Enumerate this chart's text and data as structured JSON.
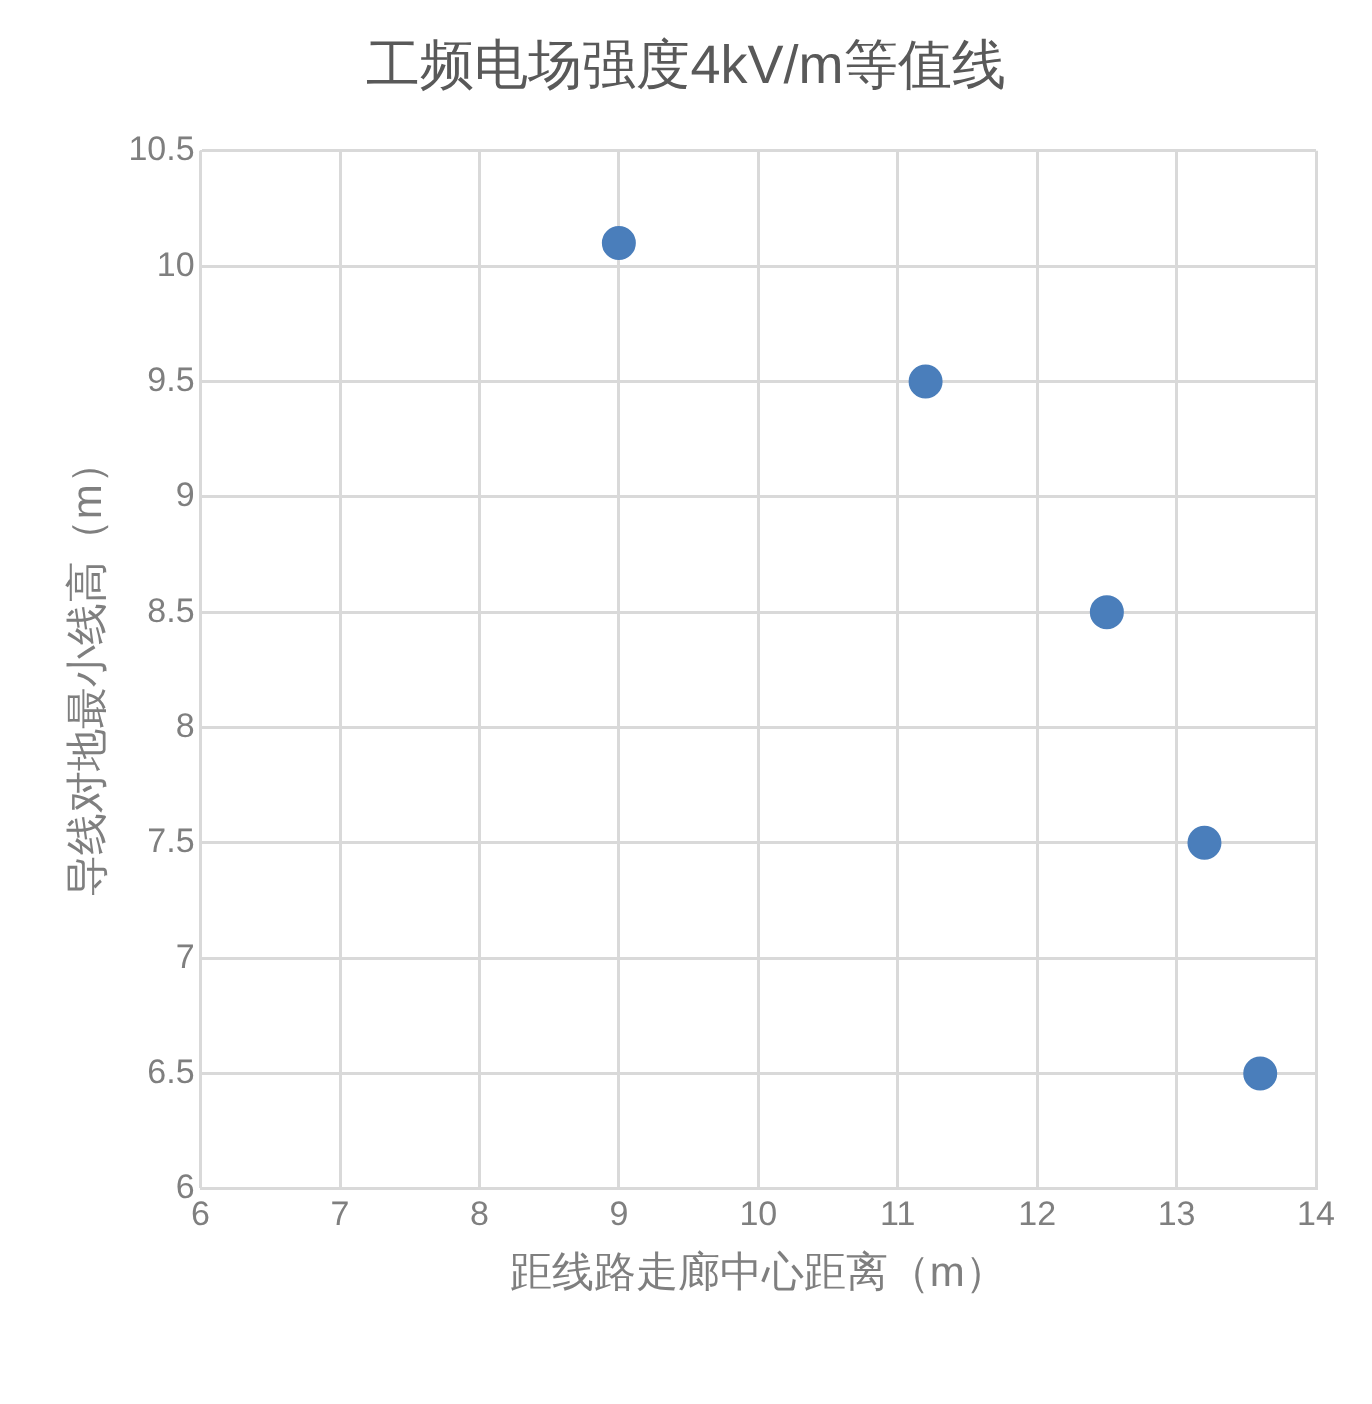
{
  "chart_data": {
    "type": "scatter",
    "title": "工频电场强度4kV/m等值线",
    "xlabel": "距线路走廊中心距离（m）",
    "ylabel": "导线对地最小线高（m）",
    "x": [
      9,
      11.2,
      12.5,
      13.2,
      13.6
    ],
    "series": [
      {
        "color": "#4a7ebb",
        "values": [
          10.1,
          9.5,
          8.5,
          7.5,
          6.5
        ]
      }
    ],
    "xlim": [
      6,
      14
    ],
    "xticks": [
      6,
      7,
      8,
      9,
      10,
      11,
      12,
      13,
      14
    ],
    "ylim": [
      6,
      10.5
    ],
    "yticks": [
      6,
      {
        "value": 6.5,
        "label": "6.5"
      },
      7,
      {
        "value": 7.5,
        "label": "7.5"
      },
      8,
      {
        "value": 8.5,
        "label": "8.5"
      },
      9,
      {
        "value": 9.5,
        "label": "9.5"
      },
      10,
      {
        "value": 10.5,
        "label": "10.5"
      }
    ],
    "grid": true,
    "legend": false,
    "marker": "circle"
  }
}
